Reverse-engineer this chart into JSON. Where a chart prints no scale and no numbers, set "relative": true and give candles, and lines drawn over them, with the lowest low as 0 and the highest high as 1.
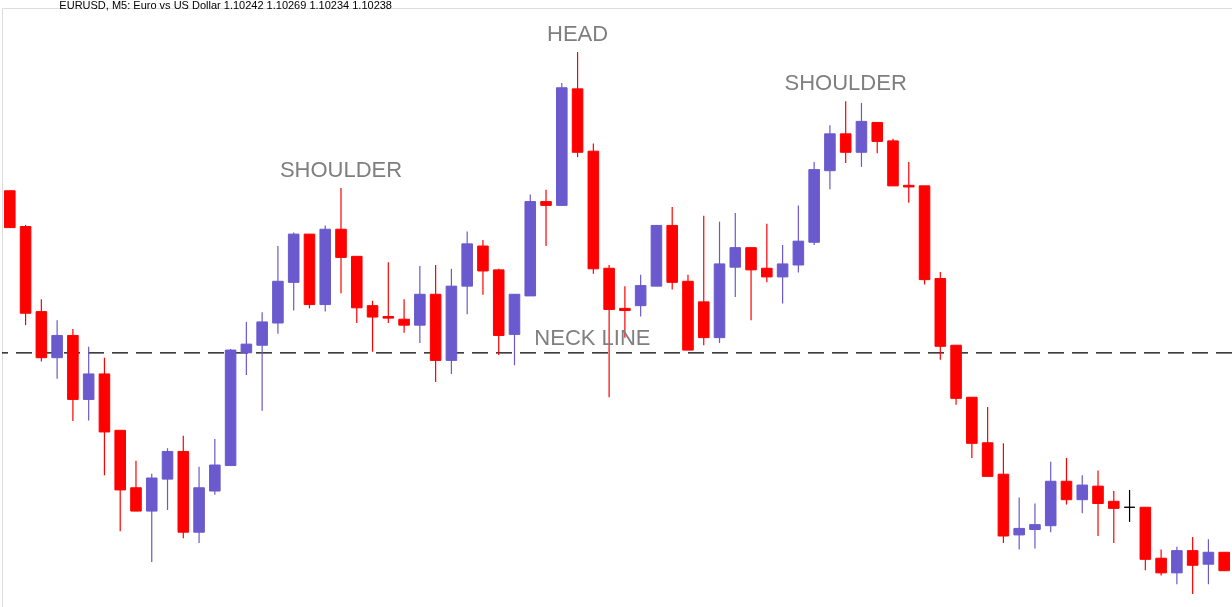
{
  "chart_data": {
    "type": "candlestick",
    "title": "EURUSD, M5: Euro vs US Dollar 1.10242 1.10269 1.10234 1.10238",
    "relative": true,
    "categories": [
      null,
      null,
      null,
      null,
      null,
      null,
      null,
      null,
      null,
      null,
      null,
      null,
      null,
      null,
      null,
      null,
      null,
      null,
      null,
      null,
      null,
      null,
      null,
      null,
      null,
      null,
      null,
      null,
      null,
      null,
      null,
      null,
      null,
      null,
      null,
      null,
      null,
      null,
      null,
      null,
      null,
      null,
      null,
      null,
      null,
      null,
      null,
      null,
      null,
      null,
      null,
      null,
      null,
      null,
      null,
      null,
      null,
      null,
      null,
      null,
      null,
      null,
      null,
      null,
      null,
      null,
      null,
      null,
      null,
      null,
      null,
      null,
      null,
      null,
      null,
      null,
      null,
      null
    ],
    "ohlc": [
      [
        0.744,
        0.744,
        0.676,
        0.676
      ],
      [
        0.678,
        0.681,
        0.496,
        0.518
      ],
      [
        0.521,
        0.544,
        0.429,
        0.436
      ],
      [
        0.436,
        0.505,
        0.397,
        0.477
      ],
      [
        0.477,
        0.489,
        0.319,
        0.359
      ],
      [
        0.359,
        0.456,
        0.32,
        0.406
      ],
      [
        0.406,
        0.436,
        0.219,
        0.299
      ],
      [
        0.302,
        0.302,
        0.116,
        0.192
      ],
      [
        0.196,
        0.246,
        0.153,
        0.153
      ],
      [
        0.153,
        0.222,
        0.059,
        0.214
      ],
      [
        0.212,
        0.269,
        0.155,
        0.263
      ],
      [
        0.263,
        0.292,
        0.103,
        0.114
      ],
      [
        0.114,
        0.235,
        0.094,
        0.196
      ],
      [
        0.19,
        0.286,
        0.183,
        0.238
      ],
      [
        0.237,
        0.452,
        0.237,
        0.45
      ],
      [
        0.445,
        0.502,
        0.404,
        0.461
      ],
      [
        0.459,
        0.52,
        0.338,
        0.502
      ],
      [
        0.5,
        0.642,
        0.48,
        0.577
      ],
      [
        0.575,
        0.667,
        0.523,
        0.664
      ],
      [
        0.664,
        0.664,
        0.527,
        0.534
      ],
      [
        0.534,
        0.68,
        0.521,
        0.673
      ],
      [
        0.673,
        0.749,
        0.555,
        0.621
      ],
      [
        0.623,
        0.623,
        0.5,
        0.528
      ],
      [
        0.532,
        0.541,
        0.447,
        0.511
      ],
      [
        0.512,
        0.612,
        0.5,
        0.509
      ],
      [
        0.507,
        0.544,
        0.482,
        0.496
      ],
      [
        0.496,
        0.605,
        0.463,
        0.553
      ],
      [
        0.553,
        0.607,
        0.391,
        0.431
      ],
      [
        0.431,
        0.6,
        0.406,
        0.568
      ],
      [
        0.568,
        0.669,
        0.516,
        0.646
      ],
      [
        0.642,
        0.653,
        0.552,
        0.596
      ],
      [
        0.598,
        0.6,
        0.441,
        0.477
      ],
      [
        0.479,
        0.553,
        0.422,
        0.553
      ],
      [
        0.55,
        0.737,
        0.55,
        0.724
      ],
      [
        0.724,
        0.746,
        0.642,
        0.717
      ],
      [
        0.717,
        0.943,
        0.717,
        0.934
      ],
      [
        0.932,
        1,
        0.806,
        0.815
      ],
      [
        0.817,
        0.831,
        0.591,
        0.6
      ],
      [
        0.601,
        0.607,
        0.363,
        0.525
      ],
      [
        0.527,
        0.568,
        0.473,
        0.523
      ],
      [
        0.532,
        0.589,
        0.512,
        0.569
      ],
      [
        0.568,
        0.681,
        0.568,
        0.68
      ],
      [
        0.68,
        0.714,
        0.562,
        0.575
      ],
      [
        0.577,
        0.589,
        0.45,
        0.45
      ],
      [
        0.539,
        0.698,
        0.459,
        0.473
      ],
      [
        0.473,
        0.687,
        0.463,
        0.609
      ],
      [
        0.603,
        0.703,
        0.548,
        0.639
      ],
      [
        0.639,
        0.639,
        0.505,
        0.598
      ],
      [
        0.601,
        0.683,
        0.575,
        0.585
      ],
      [
        0.585,
        0.644,
        0.536,
        0.609
      ],
      [
        0.607,
        0.717,
        0.593,
        0.651
      ],
      [
        0.649,
        0.797,
        0.644,
        0.783
      ],
      [
        0.781,
        0.865,
        0.747,
        0.849
      ],
      [
        0.849,
        0.909,
        0.795,
        0.815
      ],
      [
        0.815,
        0.906,
        0.788,
        0.872
      ],
      [
        0.87,
        0.87,
        0.813,
        0.835
      ],
      [
        0.836,
        0.84,
        0.753,
        0.753
      ],
      [
        0.754,
        0.797,
        0.722,
        0.751
      ],
      [
        0.753,
        0.753,
        0.571,
        0.58
      ],
      [
        0.582,
        0.594,
        0.432,
        0.457
      ],
      [
        0.459,
        0.459,
        0.349,
        0.361
      ],
      [
        0.363,
        0.363,
        0.251,
        0.278
      ],
      [
        0.279,
        0.345,
        0.217,
        0.217
      ],
      [
        0.221,
        0.278,
        0.094,
        0.107
      ],
      [
        0.109,
        0.178,
        0.082,
        0.121
      ],
      [
        0.119,
        0.167,
        0.084,
        0.128
      ],
      [
        0.126,
        0.244,
        0.114,
        0.208
      ],
      [
        0.208,
        0.251,
        0.165,
        0.174
      ],
      [
        0.174,
        0.219,
        0.149,
        0.201
      ],
      [
        0.199,
        0.228,
        0.107,
        0.167
      ],
      [
        0.171,
        0.19,
        0.094,
        0.158
      ],
      [
        0.16,
        0.192,
        0.133,
        0.16
      ],
      [
        0.16,
        0.16,
        0.044,
        0.064
      ],
      [
        0.066,
        0.082,
        0.034,
        0.039
      ],
      [
        0.039,
        0.087,
        0.018,
        0.08
      ],
      [
        0.08,
        0.105,
        0,
        0.053
      ],
      [
        0.055,
        0.101,
        0.018,
        0.077
      ],
      [
        0.077,
        0.077,
        0.043,
        0.043
      ]
    ],
    "colors": [
      "#ff0000",
      "#ff0000",
      "#ff0000",
      "#6a5acd",
      "#ff0000",
      "#6a5acd",
      "#ff0000",
      "#ff0000",
      "#ff0000",
      "#6a5acd",
      "#6a5acd",
      "#ff0000",
      "#6a5acd",
      "#6a5acd",
      "#6a5acd",
      "#6a5acd",
      "#6a5acd",
      "#6a5acd",
      "#6a5acd",
      "#ff0000",
      "#6a5acd",
      "#ff0000",
      "#ff0000",
      "#ff0000",
      "#ff0000",
      "#ff0000",
      "#6a5acd",
      "#ff0000",
      "#6a5acd",
      "#6a5acd",
      "#ff0000",
      "#ff0000",
      "#6a5acd",
      "#6a5acd",
      "#ff0000",
      "#6a5acd",
      "#ff0000",
      "#ff0000",
      "#ff0000",
      "#ff0000",
      "#6a5acd",
      "#6a5acd",
      "#ff0000",
      "#ff0000",
      "#ff0000",
      "#6a5acd",
      "#6a5acd",
      "#ff0000",
      "#ff0000",
      "#6a5acd",
      "#6a5acd",
      "#6a5acd",
      "#6a5acd",
      "#ff0000",
      "#6a5acd",
      "#ff0000",
      "#ff0000",
      "#ff0000",
      "#ff0000",
      "#ff0000",
      "#ff0000",
      "#ff0000",
      "#ff0000",
      "#ff0000",
      "#6a5acd",
      "#6a5acd",
      "#6a5acd",
      "#ff0000",
      "#6a5acd",
      "#ff0000",
      "#ff0000",
      "#000000",
      "#ff0000",
      "#ff0000",
      "#6a5acd",
      "#ff0000",
      "#6a5acd",
      "#ff0000"
    ],
    "annotations": [
      {
        "text": "SHOULDER",
        "y": 0.749
      },
      {
        "text": "HEAD",
        "y": 1
      },
      {
        "text": "SHOULDER",
        "y": 0.909
      }
    ],
    "ref_lines": [
      {
        "axis": "y",
        "value": 0.445,
        "label": "NECK LINE",
        "color": "#000000",
        "line_style": "dashed"
      }
    ]
  }
}
